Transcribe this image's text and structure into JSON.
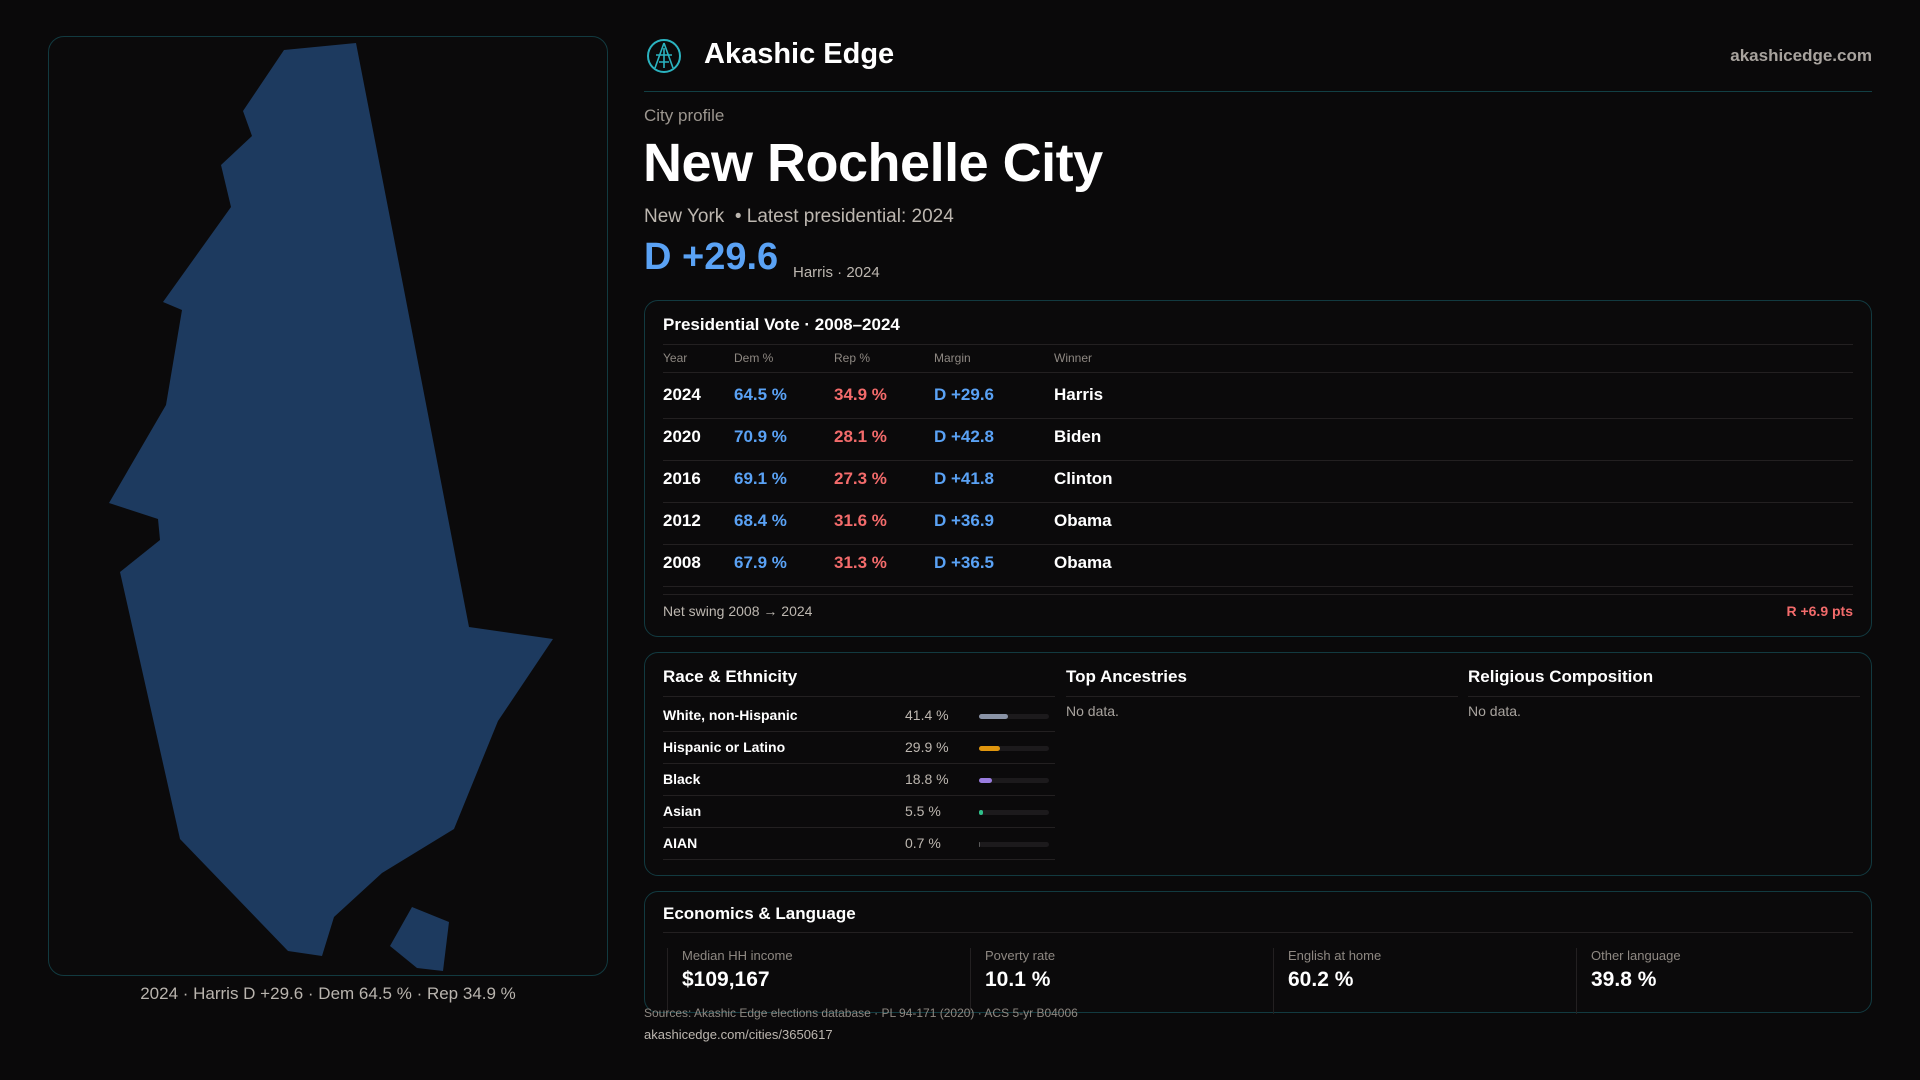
{
  "brand": {
    "name": "Akashic Edge",
    "site": "akashicedge.com"
  },
  "map": {
    "caption": "2024 · Harris D +29.6 · Dem 64.5 % · Rep 34.9 %",
    "fill": "#1d3a5f"
  },
  "profile": {
    "eyebrow": "City profile",
    "title": "New Rochelle City",
    "subtitle": "New York  • Latest presidential: 2024",
    "margin": "D +29.6",
    "margin_note": "Harris · 2024"
  },
  "vote": {
    "title": "Presidential Vote · 2008–2024",
    "headers": [
      "Year",
      "Dem %",
      "Rep %",
      "Margin",
      "Winner"
    ],
    "rows": [
      {
        "year": "2024",
        "dem": "64.5 %",
        "rep": "34.9 %",
        "margin": "D +29.6",
        "winner": "Harris"
      },
      {
        "year": "2020",
        "dem": "70.9 %",
        "rep": "28.1 %",
        "margin": "D +42.8",
        "winner": "Biden"
      },
      {
        "year": "2016",
        "dem": "69.1 %",
        "rep": "27.3 %",
        "margin": "D +41.8",
        "winner": "Clinton"
      },
      {
        "year": "2012",
        "dem": "68.4 %",
        "rep": "31.6 %",
        "margin": "D +36.9",
        "winner": "Obama"
      },
      {
        "year": "2008",
        "dem": "67.9 %",
        "rep": "31.3 %",
        "margin": "D +36.5",
        "winner": "Obama"
      }
    ],
    "swing_label": "Net swing 2008 → 2024",
    "swing_value": "R +6.9 pts"
  },
  "race": {
    "title": "Race & Ethnicity",
    "rows": [
      {
        "label": "White, non-Hispanic",
        "pct": "41.4 %",
        "value": 41.4,
        "color": "#8a93a6"
      },
      {
        "label": "Hispanic or Latino",
        "pct": "29.9 %",
        "value": 29.9,
        "color": "#e0960e"
      },
      {
        "label": "Black",
        "pct": "18.8 %",
        "value": 18.8,
        "color": "#9a7de0"
      },
      {
        "label": "Asian",
        "pct": "5.5 %",
        "value": 5.5,
        "color": "#2fc08a"
      },
      {
        "label": "AIAN",
        "pct": "0.7 %",
        "value": 0.7,
        "color": "#5a5a5a"
      }
    ]
  },
  "ancestries": {
    "title": "Top Ancestries",
    "empty": "No data."
  },
  "religion": {
    "title": "Religious Composition",
    "empty": "No data."
  },
  "econ": {
    "title": "Economics & Language",
    "cells": [
      {
        "label": "Median HH income",
        "value": "$109,167"
      },
      {
        "label": "Poverty rate",
        "value": "10.1 %"
      },
      {
        "label": "English at home",
        "value": "60.2 %"
      },
      {
        "label": "Other language",
        "value": "39.8 %"
      }
    ]
  },
  "footer": {
    "sources": "Sources: Akashic Edge elections database · PL 94-171 (2020) · ACS 5-yr B04006",
    "url": "akashicedge.com/cities/3650617"
  }
}
